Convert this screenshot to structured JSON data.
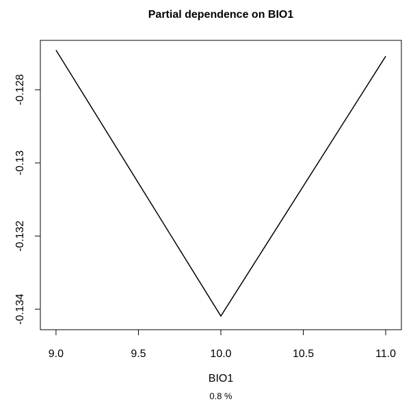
{
  "chart_data": {
    "type": "line",
    "title": "Partial dependence on BIO1",
    "xlabel": "BIO1",
    "subtitle": "0.8 %",
    "x": [
      9.0,
      10.0,
      11.0
    ],
    "values": [
      -0.126916,
      -0.134187,
      -0.127084
    ],
    "color": "#000000",
    "xlim": [
      8.905,
      11.095
    ],
    "ylim": [
      -0.13456,
      -0.12665
    ],
    "xticks": [
      {
        "value": 9,
        "label": "9.0"
      },
      9.5,
      {
        "value": 10,
        "label": "10.0"
      },
      10.5,
      {
        "value": 11,
        "label": "11.0"
      }
    ],
    "yticks": [
      -0.134,
      -0.132,
      -0.13,
      -0.128
    ]
  }
}
